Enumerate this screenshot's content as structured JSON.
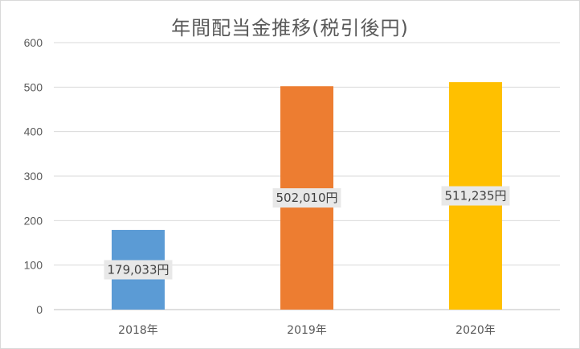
{
  "chart_data": {
    "type": "bar",
    "title": "年間配当金推移(税引後円)",
    "categories": [
      "2018年",
      "2019年",
      "2020年"
    ],
    "values": [
      179.033,
      502.01,
      511.235
    ],
    "data_labels": [
      "179,033円",
      "502,010円",
      "511,235円"
    ],
    "colors": [
      "#5b9bd5",
      "#ed7d31",
      "#ffc000"
    ],
    "ylim": [
      0,
      600
    ],
    "yticks": [
      "0",
      "100",
      "200",
      "300",
      "400",
      "500",
      "600"
    ],
    "grid": true,
    "legend": "none"
  }
}
